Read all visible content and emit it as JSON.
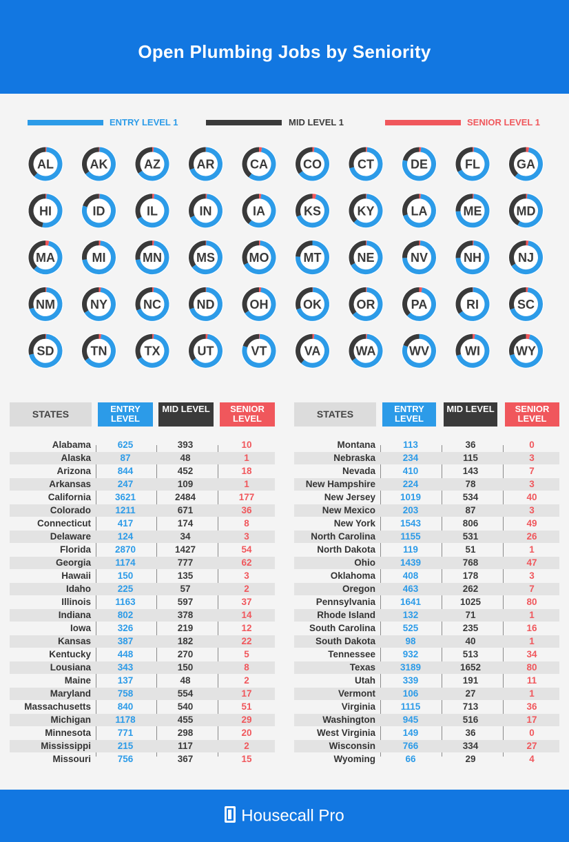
{
  "header": {
    "title": "Open Plumbing Jobs by Seniority"
  },
  "legend": [
    {
      "label": "ENTRY LEVEL 1",
      "color": "#2c9be8"
    },
    {
      "label": "MID LEVEL 1",
      "color": "#3a3a3a"
    },
    {
      "label": "SENIOR LEVEL 1",
      "color": "#f0575c"
    }
  ],
  "table": {
    "headers": {
      "state": "STATES",
      "entry": "ENTRY LEVEL",
      "mid": "MID LEVEL",
      "senior": "SENIOR LEVEL"
    }
  },
  "chart_data": {
    "type": "table",
    "donut_type": "pie",
    "columns": [
      "States",
      "Entry Level",
      "Mid Level",
      "Senior Level"
    ],
    "series_colors": {
      "entry": "#2c9be8",
      "mid": "#3a3a3a",
      "senior": "#f0575c"
    },
    "rows": [
      {
        "state": "Alabama",
        "abbr": "AL",
        "entry": 625,
        "mid": 393,
        "senior": 10
      },
      {
        "state": "Alaska",
        "abbr": "AK",
        "entry": 87,
        "mid": 48,
        "senior": 1
      },
      {
        "state": "Arizona",
        "abbr": "AZ",
        "entry": 844,
        "mid": 452,
        "senior": 18
      },
      {
        "state": "Arkansas",
        "abbr": "AR",
        "entry": 247,
        "mid": 109,
        "senior": 1
      },
      {
        "state": "California",
        "abbr": "CA",
        "entry": 3621,
        "mid": 2484,
        "senior": 177
      },
      {
        "state": "Colorado",
        "abbr": "CO",
        "entry": 1211,
        "mid": 671,
        "senior": 36
      },
      {
        "state": "Connecticut",
        "abbr": "CT",
        "entry": 417,
        "mid": 174,
        "senior": 8
      },
      {
        "state": "Delaware",
        "abbr": "DE",
        "entry": 124,
        "mid": 34,
        "senior": 3
      },
      {
        "state": "Florida",
        "abbr": "FL",
        "entry": 2870,
        "mid": 1427,
        "senior": 54
      },
      {
        "state": "Georgia",
        "abbr": "GA",
        "entry": 1174,
        "mid": 777,
        "senior": 62
      },
      {
        "state": "Hawaii",
        "abbr": "HI",
        "entry": 150,
        "mid": 135,
        "senior": 3
      },
      {
        "state": "Idaho",
        "abbr": "ID",
        "entry": 225,
        "mid": 57,
        "senior": 2
      },
      {
        "state": "Illinois",
        "abbr": "IL",
        "entry": 1163,
        "mid": 597,
        "senior": 37
      },
      {
        "state": "Indiana",
        "abbr": "IN",
        "entry": 802,
        "mid": 378,
        "senior": 14
      },
      {
        "state": "Iowa",
        "abbr": "IA",
        "entry": 326,
        "mid": 219,
        "senior": 12
      },
      {
        "state": "Kansas",
        "abbr": "KS",
        "entry": 387,
        "mid": 182,
        "senior": 22
      },
      {
        "state": "Kentucky",
        "abbr": "KY",
        "entry": 448,
        "mid": 270,
        "senior": 5
      },
      {
        "state": "Lousiana",
        "abbr": "LA",
        "entry": 343,
        "mid": 150,
        "senior": 8
      },
      {
        "state": "Maine",
        "abbr": "ME",
        "entry": 137,
        "mid": 48,
        "senior": 2
      },
      {
        "state": "Maryland",
        "abbr": "MD",
        "entry": 758,
        "mid": 554,
        "senior": 17
      },
      {
        "state": "Massachusetts",
        "abbr": "MA",
        "entry": 840,
        "mid": 540,
        "senior": 51
      },
      {
        "state": "Michigan",
        "abbr": "MI",
        "entry": 1178,
        "mid": 455,
        "senior": 29
      },
      {
        "state": "Minnesota",
        "abbr": "MN",
        "entry": 771,
        "mid": 298,
        "senior": 20
      },
      {
        "state": "Mississippi",
        "abbr": "MS",
        "entry": 215,
        "mid": 117,
        "senior": 2
      },
      {
        "state": "Missouri",
        "abbr": "MO",
        "entry": 756,
        "mid": 367,
        "senior": 15
      },
      {
        "state": "Montana",
        "abbr": "MT",
        "entry": 113,
        "mid": 36,
        "senior": 0
      },
      {
        "state": "Nebraska",
        "abbr": "NE",
        "entry": 234,
        "mid": 115,
        "senior": 3
      },
      {
        "state": "Nevada",
        "abbr": "NV",
        "entry": 410,
        "mid": 143,
        "senior": 7
      },
      {
        "state": "New Hampshire",
        "abbr": "NH",
        "entry": 224,
        "mid": 78,
        "senior": 3
      },
      {
        "state": "New Jersey",
        "abbr": "NJ",
        "entry": 1019,
        "mid": 534,
        "senior": 40
      },
      {
        "state": "New Mexico",
        "abbr": "NM",
        "entry": 203,
        "mid": 87,
        "senior": 3
      },
      {
        "state": "New York",
        "abbr": "NY",
        "entry": 1543,
        "mid": 806,
        "senior": 49
      },
      {
        "state": "North Carolina",
        "abbr": "NC",
        "entry": 1155,
        "mid": 531,
        "senior": 26
      },
      {
        "state": "North Dakota",
        "abbr": "ND",
        "entry": 119,
        "mid": 51,
        "senior": 1
      },
      {
        "state": "Ohio",
        "abbr": "OH",
        "entry": 1439,
        "mid": 768,
        "senior": 47
      },
      {
        "state": "Oklahoma",
        "abbr": "OK",
        "entry": 408,
        "mid": 178,
        "senior": 3
      },
      {
        "state": "Oregon",
        "abbr": "OR",
        "entry": 463,
        "mid": 262,
        "senior": 7
      },
      {
        "state": "Pennsylvania",
        "abbr": "PA",
        "entry": 1641,
        "mid": 1025,
        "senior": 80
      },
      {
        "state": "Rhode Island",
        "abbr": "RI",
        "entry": 132,
        "mid": 71,
        "senior": 1
      },
      {
        "state": "South Carolina",
        "abbr": "SC",
        "entry": 525,
        "mid": 235,
        "senior": 16
      },
      {
        "state": "South Dakota",
        "abbr": "SD",
        "entry": 98,
        "mid": 40,
        "senior": 1
      },
      {
        "state": "Tennessee",
        "abbr": "TN",
        "entry": 932,
        "mid": 513,
        "senior": 34
      },
      {
        "state": "Texas",
        "abbr": "TX",
        "entry": 3189,
        "mid": 1652,
        "senior": 80
      },
      {
        "state": "Utah",
        "abbr": "UT",
        "entry": 339,
        "mid": 191,
        "senior": 11
      },
      {
        "state": "Vermont",
        "abbr": "VT",
        "entry": 106,
        "mid": 27,
        "senior": 1
      },
      {
        "state": "Virginia",
        "abbr": "VA",
        "entry": 1115,
        "mid": 713,
        "senior": 36
      },
      {
        "state": "Washington",
        "abbr": "WA",
        "entry": 945,
        "mid": 516,
        "senior": 17
      },
      {
        "state": "West Virginia",
        "abbr": "WV",
        "entry": 149,
        "mid": 36,
        "senior": 0
      },
      {
        "state": "Wisconsin",
        "abbr": "WI",
        "entry": 766,
        "mid": 334,
        "senior": 27
      },
      {
        "state": "Wyoming",
        "abbr": "WY",
        "entry": 66,
        "mid": 29,
        "senior": 4
      }
    ]
  },
  "footer": {
    "brand": "Housecall Pro"
  }
}
